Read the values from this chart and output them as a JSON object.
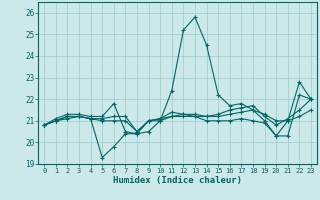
{
  "xlabel": "Humidex (Indice chaleur)",
  "xlim": [
    -0.5,
    23.5
  ],
  "ylim": [
    19,
    26.5
  ],
  "yticks": [
    19,
    20,
    21,
    22,
    23,
    24,
    25,
    26
  ],
  "xticks": [
    0,
    1,
    2,
    3,
    4,
    5,
    6,
    7,
    8,
    9,
    10,
    11,
    12,
    13,
    14,
    15,
    16,
    17,
    18,
    19,
    20,
    21,
    22,
    23
  ],
  "bg_color": "#cce8e8",
  "grid_color": "#99cccc",
  "line_color": "#006666",
  "series": [
    [
      20.8,
      21.1,
      21.3,
      21.3,
      21.2,
      21.2,
      21.8,
      20.5,
      20.4,
      20.5,
      21.0,
      22.4,
      25.2,
      25.8,
      24.5,
      22.2,
      21.7,
      21.8,
      21.5,
      21.0,
      20.3,
      21.0,
      22.8,
      22.0
    ],
    [
      20.8,
      21.0,
      21.2,
      21.2,
      21.1,
      21.1,
      21.2,
      21.2,
      20.5,
      21.0,
      21.1,
      21.4,
      21.3,
      21.3,
      21.2,
      21.3,
      21.5,
      21.6,
      21.7,
      21.2,
      20.8,
      21.1,
      21.5,
      22.0
    ],
    [
      20.8,
      21.0,
      21.1,
      21.2,
      21.1,
      21.0,
      21.0,
      21.0,
      20.5,
      21.0,
      21.1,
      21.2,
      21.3,
      21.2,
      21.2,
      21.2,
      21.3,
      21.4,
      21.5,
      21.3,
      21.0,
      21.0,
      21.2,
      21.5
    ],
    [
      20.8,
      21.0,
      21.2,
      21.2,
      21.1,
      19.3,
      19.8,
      20.4,
      20.4,
      21.0,
      21.0,
      21.2,
      21.2,
      21.2,
      21.0,
      21.0,
      21.0,
      21.1,
      21.0,
      20.9,
      20.3,
      20.3,
      22.2,
      22.0
    ]
  ]
}
